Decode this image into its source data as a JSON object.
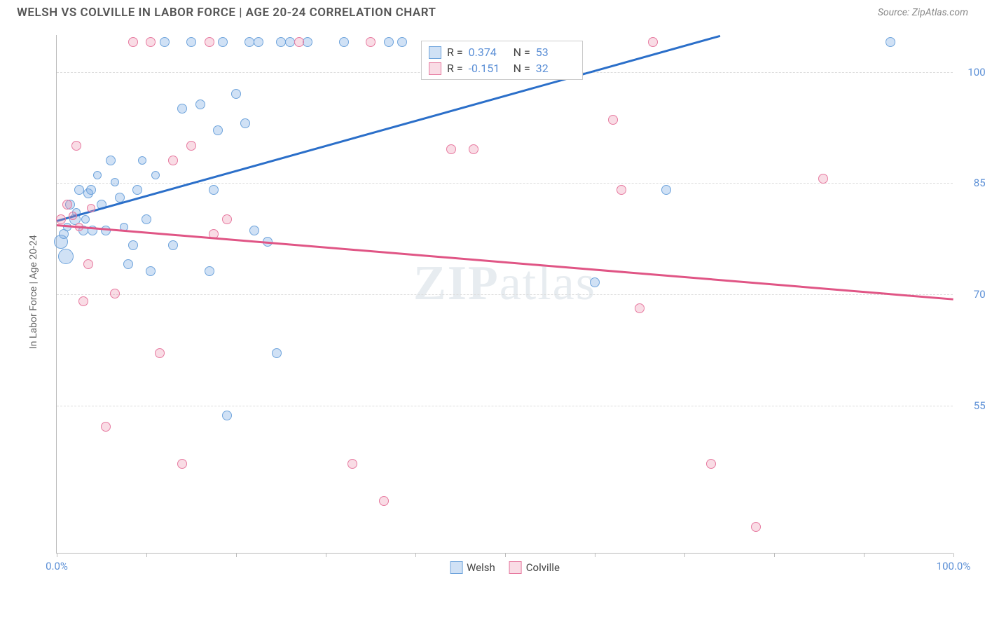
{
  "header": {
    "title": "WELSH VS COLVILLE IN LABOR FORCE | AGE 20-24 CORRELATION CHART",
    "source": "Source: ZipAtlas.com"
  },
  "chart": {
    "type": "scatter",
    "y_axis_label": "In Labor Force | Age 20-24",
    "watermark_bold": "ZIP",
    "watermark_rest": "atlas",
    "xlim": [
      0,
      100
    ],
    "ylim": [
      35,
      105
    ],
    "y_ticks": [
      {
        "value": 100,
        "label": "100.0%"
      },
      {
        "value": 85,
        "label": "85.0%"
      },
      {
        "value": 70,
        "label": "70.0%"
      },
      {
        "value": 55,
        "label": "55.0%"
      }
    ],
    "x_ticks": [
      0,
      10,
      20,
      30,
      40,
      50,
      60,
      70,
      80,
      90,
      100
    ],
    "x_tick_labels": [
      {
        "value": 0,
        "label": "0.0%"
      },
      {
        "value": 100,
        "label": "100.0%"
      }
    ],
    "series": [
      {
        "name": "Welsh",
        "color_fill": "rgba(120,170,225,0.35)",
        "color_stroke": "#6fa4dc",
        "trend_color": "#2b6fc9",
        "r": 0.374,
        "n": 53,
        "r_label": "R =",
        "n_label": "N =",
        "trend": {
          "x1": 0,
          "y1": 80,
          "x2": 74,
          "y2": 105
        },
        "points": [
          {
            "x": 0.5,
            "y": 77,
            "s": 20
          },
          {
            "x": 0.8,
            "y": 78,
            "s": 14
          },
          {
            "x": 1.0,
            "y": 75,
            "s": 22
          },
          {
            "x": 1.2,
            "y": 79,
            "s": 12
          },
          {
            "x": 1.5,
            "y": 82,
            "s": 14
          },
          {
            "x": 2.0,
            "y": 80,
            "s": 16
          },
          {
            "x": 2.2,
            "y": 81,
            "s": 12
          },
          {
            "x": 2.5,
            "y": 84,
            "s": 14
          },
          {
            "x": 3.0,
            "y": 78.5,
            "s": 14
          },
          {
            "x": 3.2,
            "y": 80,
            "s": 12
          },
          {
            "x": 3.5,
            "y": 83.5,
            "s": 14
          },
          {
            "x": 3.8,
            "y": 84,
            "s": 14
          },
          {
            "x": 4.0,
            "y": 78.5,
            "s": 14
          },
          {
            "x": 4.5,
            "y": 86,
            "s": 12
          },
          {
            "x": 5.0,
            "y": 82,
            "s": 14
          },
          {
            "x": 5.5,
            "y": 78.5,
            "s": 14
          },
          {
            "x": 6.0,
            "y": 88,
            "s": 14
          },
          {
            "x": 6.5,
            "y": 85,
            "s": 12
          },
          {
            "x": 7.0,
            "y": 83,
            "s": 14
          },
          {
            "x": 7.5,
            "y": 79,
            "s": 12
          },
          {
            "x": 8.0,
            "y": 74,
            "s": 14
          },
          {
            "x": 8.5,
            "y": 76.5,
            "s": 14
          },
          {
            "x": 9.0,
            "y": 84,
            "s": 14
          },
          {
            "x": 9.5,
            "y": 88,
            "s": 12
          },
          {
            "x": 10,
            "y": 80,
            "s": 14
          },
          {
            "x": 10.5,
            "y": 73,
            "s": 14
          },
          {
            "x": 11,
            "y": 86,
            "s": 12
          },
          {
            "x": 12,
            "y": 104,
            "s": 14
          },
          {
            "x": 13,
            "y": 76.5,
            "s": 14
          },
          {
            "x": 14,
            "y": 95,
            "s": 14
          },
          {
            "x": 15,
            "y": 104,
            "s": 14
          },
          {
            "x": 16,
            "y": 95.5,
            "s": 14
          },
          {
            "x": 17,
            "y": 73,
            "s": 14
          },
          {
            "x": 17.5,
            "y": 84,
            "s": 14
          },
          {
            "x": 18,
            "y": 92,
            "s": 14
          },
          {
            "x": 18.5,
            "y": 104,
            "s": 14
          },
          {
            "x": 19,
            "y": 53.5,
            "s": 14
          },
          {
            "x": 20,
            "y": 97,
            "s": 14
          },
          {
            "x": 21,
            "y": 93,
            "s": 14
          },
          {
            "x": 21.5,
            "y": 104,
            "s": 14
          },
          {
            "x": 22,
            "y": 78.5,
            "s": 14
          },
          {
            "x": 22.5,
            "y": 104,
            "s": 14
          },
          {
            "x": 23.5,
            "y": 77,
            "s": 14
          },
          {
            "x": 24.5,
            "y": 62,
            "s": 14
          },
          {
            "x": 25,
            "y": 104,
            "s": 14
          },
          {
            "x": 26,
            "y": 104,
            "s": 14
          },
          {
            "x": 28,
            "y": 104,
            "s": 14
          },
          {
            "x": 32,
            "y": 104,
            "s": 14
          },
          {
            "x": 37,
            "y": 104,
            "s": 14
          },
          {
            "x": 38.5,
            "y": 104,
            "s": 14
          },
          {
            "x": 60,
            "y": 71.5,
            "s": 14
          },
          {
            "x": 68,
            "y": 84,
            "s": 14
          },
          {
            "x": 93,
            "y": 104,
            "s": 14
          }
        ]
      },
      {
        "name": "Colville",
        "color_fill": "rgba(235,140,170,0.30)",
        "color_stroke": "#e77aa0",
        "trend_color": "#e05585",
        "r": -0.151,
        "n": 32,
        "r_label": "R =",
        "n_label": "N =",
        "trend": {
          "x1": 0,
          "y1": 79.5,
          "x2": 100,
          "y2": 69.5
        },
        "points": [
          {
            "x": 0.5,
            "y": 80,
            "s": 14
          },
          {
            "x": 1.2,
            "y": 82,
            "s": 14
          },
          {
            "x": 1.8,
            "y": 80.5,
            "s": 12
          },
          {
            "x": 2.2,
            "y": 90,
            "s": 14
          },
          {
            "x": 2.5,
            "y": 79,
            "s": 12
          },
          {
            "x": 3.0,
            "y": 69,
            "s": 14
          },
          {
            "x": 3.5,
            "y": 74,
            "s": 14
          },
          {
            "x": 3.8,
            "y": 81.5,
            "s": 12
          },
          {
            "x": 5.5,
            "y": 52,
            "s": 14
          },
          {
            "x": 6.5,
            "y": 70,
            "s": 14
          },
          {
            "x": 8.5,
            "y": 104,
            "s": 14
          },
          {
            "x": 10.5,
            "y": 104,
            "s": 14
          },
          {
            "x": 11.5,
            "y": 62,
            "s": 14
          },
          {
            "x": 13,
            "y": 88,
            "s": 14
          },
          {
            "x": 14,
            "y": 47,
            "s": 14
          },
          {
            "x": 15,
            "y": 90,
            "s": 14
          },
          {
            "x": 17,
            "y": 104,
            "s": 14
          },
          {
            "x": 17.5,
            "y": 78,
            "s": 14
          },
          {
            "x": 19,
            "y": 80,
            "s": 14
          },
          {
            "x": 27,
            "y": 104,
            "s": 14
          },
          {
            "x": 33,
            "y": 47,
            "s": 14
          },
          {
            "x": 35,
            "y": 104,
            "s": 14
          },
          {
            "x": 36.5,
            "y": 42,
            "s": 14
          },
          {
            "x": 44,
            "y": 89.5,
            "s": 14
          },
          {
            "x": 46.5,
            "y": 89.5,
            "s": 14
          },
          {
            "x": 62,
            "y": 93.5,
            "s": 14
          },
          {
            "x": 65,
            "y": 68,
            "s": 14
          },
          {
            "x": 66.5,
            "y": 104,
            "s": 14
          },
          {
            "x": 73,
            "y": 47,
            "s": 14
          },
          {
            "x": 78,
            "y": 38.5,
            "s": 14
          },
          {
            "x": 85.5,
            "y": 85.5,
            "s": 14
          },
          {
            "x": 63,
            "y": 84,
            "s": 14
          }
        ]
      }
    ],
    "legend_bottom": [
      {
        "name": "Welsh"
      },
      {
        "name": "Colville"
      }
    ]
  }
}
